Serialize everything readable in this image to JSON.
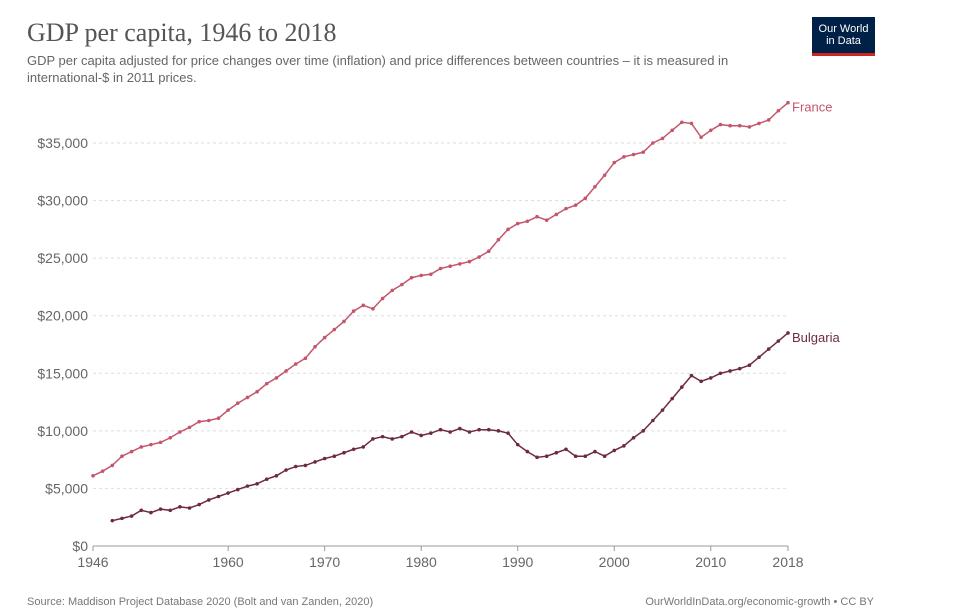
{
  "header": {
    "title": "GDP per capita, 1946 to 2018",
    "subtitle": "GDP per capita adjusted for price changes over time (inflation) and price differences between countries – it is measured in international-$ in 2011 prices.",
    "logo_line1": "Our World",
    "logo_line2": "in Data"
  },
  "footer": {
    "source": "Source: Maddison Project Database 2020 (Bolt and van Zanden, 2020)",
    "link": "OurWorldInData.org/economic-growth • CC BY"
  },
  "chart_data": {
    "type": "line",
    "title": "GDP per capita, 1946 to 2018",
    "xlim": [
      1946,
      2018
    ],
    "ylim": [
      0,
      38500
    ],
    "x_ticks": [
      1946,
      1960,
      1970,
      1980,
      1990,
      2000,
      2010,
      2018
    ],
    "x_tick_labels": [
      "1946",
      "1960",
      "1970",
      "1980",
      "1990",
      "2000",
      "2010",
      "2018"
    ],
    "y_ticks": [
      0,
      5000,
      10000,
      15000,
      20000,
      25000,
      30000,
      35000
    ],
    "y_tick_labels": [
      "$0",
      "$5,000",
      "$10,000",
      "$15,000",
      "$20,000",
      "$25,000",
      "$30,000",
      "$35,000"
    ],
    "grid": true,
    "series": [
      {
        "name": "France",
        "color": "#c4566c",
        "start_year": 1946,
        "values": [
          6100,
          6500,
          7000,
          7800,
          8200,
          8600,
          8800,
          9000,
          9400,
          9900,
          10300,
          10800,
          10900,
          11100,
          11800,
          12400,
          12900,
          13400,
          14100,
          14600,
          15200,
          15800,
          16300,
          17300,
          18100,
          18800,
          19500,
          20400,
          20900,
          20600,
          21500,
          22200,
          22700,
          23300,
          23500,
          23600,
          24100,
          24300,
          24500,
          24700,
          25100,
          25600,
          26600,
          27500,
          28000,
          28200,
          28600,
          28300,
          28800,
          29300,
          29600,
          30200,
          31200,
          32200,
          33300,
          33800,
          34000,
          34200,
          35000,
          35400,
          36100,
          36800,
          36700,
          35500,
          36100,
          36600,
          36500,
          36500,
          36400,
          36700,
          37000,
          37800,
          38500
        ]
      },
      {
        "name": "Bulgaria",
        "color": "#6e2b3f",
        "start_year": 1948,
        "values": [
          2200,
          2400,
          2600,
          3100,
          2900,
          3200,
          3100,
          3400,
          3300,
          3600,
          4000,
          4300,
          4600,
          4900,
          5200,
          5400,
          5800,
          6100,
          6600,
          6900,
          7000,
          7300,
          7600,
          7800,
          8100,
          8400,
          8600,
          9300,
          9500,
          9300,
          9500,
          9900,
          9600,
          9800,
          10100,
          9900,
          10200,
          9900,
          10100,
          10100,
          10000,
          9800,
          8800,
          8200,
          7700,
          7800,
          8100,
          8400,
          7800,
          7800,
          8200,
          7800,
          8300,
          8700,
          9400,
          10000,
          10900,
          11800,
          12800,
          13800,
          14800,
          14300,
          14600,
          15000,
          15200,
          15400,
          15700,
          16400,
          17100,
          17800,
          18500
        ]
      }
    ]
  }
}
